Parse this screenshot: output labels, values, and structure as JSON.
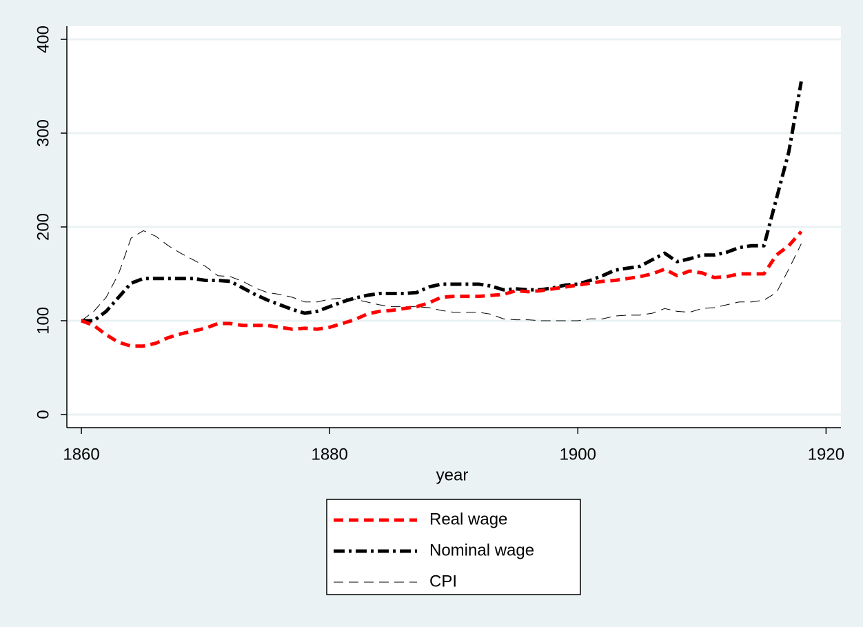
{
  "chart_data": {
    "type": "line",
    "xlabel": "year",
    "x": [
      1860,
      1861,
      1862,
      1863,
      1864,
      1865,
      1866,
      1867,
      1868,
      1869,
      1870,
      1871,
      1872,
      1873,
      1874,
      1875,
      1876,
      1877,
      1878,
      1879,
      1880,
      1881,
      1882,
      1883,
      1884,
      1885,
      1886,
      1887,
      1888,
      1889,
      1890,
      1891,
      1892,
      1893,
      1894,
      1895,
      1896,
      1897,
      1898,
      1899,
      1900,
      1901,
      1902,
      1903,
      1904,
      1905,
      1906,
      1907,
      1908,
      1909,
      1910,
      1911,
      1912,
      1913,
      1914,
      1915,
      1916,
      1917,
      1918
    ],
    "series": [
      {
        "name": "Real wage",
        "color": "#ff0000",
        "width": 5,
        "dash": "14 8",
        "values": [
          100,
          95,
          85,
          77,
          73,
          73,
          76,
          82,
          86,
          89,
          92,
          97,
          97,
          95,
          95,
          95,
          93,
          91,
          92,
          91,
          93,
          97,
          101,
          107,
          110,
          111,
          113,
          115,
          119,
          125,
          126,
          126,
          126,
          127,
          128,
          132,
          131,
          132,
          134,
          136,
          138,
          140,
          142,
          143,
          145,
          147,
          150,
          155,
          148,
          153,
          151,
          146,
          147,
          150,
          150,
          150,
          170,
          180,
          195
        ]
      },
      {
        "name": "Nominal wage",
        "color": "#000000",
        "width": 5,
        "dash": "16 6 4 6",
        "values": [
          100,
          100,
          110,
          125,
          140,
          145,
          145,
          145,
          145,
          145,
          143,
          143,
          142,
          135,
          128,
          122,
          117,
          112,
          108,
          110,
          115,
          120,
          124,
          127,
          129,
          129,
          129,
          130,
          136,
          139,
          139,
          139,
          139,
          137,
          133,
          134,
          133,
          133,
          135,
          138,
          139,
          143,
          148,
          154,
          156,
          158,
          165,
          172,
          163,
          166,
          170,
          170,
          173,
          178,
          180,
          180,
          230,
          280,
          355
        ]
      },
      {
        "name": "CPI",
        "color": "#000000",
        "width": 1,
        "dash": "14 8",
        "values": [
          100,
          110,
          125,
          150,
          188,
          196,
          190,
          180,
          172,
          165,
          158,
          148,
          147,
          142,
          135,
          130,
          128,
          125,
          120,
          120,
          123,
          124,
          123,
          120,
          117,
          115,
          115,
          115,
          114,
          111,
          109,
          109,
          109,
          107,
          102,
          101,
          101,
          100,
          100,
          100,
          100,
          102,
          102,
          105,
          106,
          106,
          108,
          113,
          110,
          109,
          113,
          114,
          117,
          120,
          120,
          122,
          130,
          155,
          182
        ]
      }
    ],
    "xlim": [
      1858.83,
      1921.2
    ],
    "xticks": [
      1860,
      1880,
      1900,
      1920
    ],
    "ylim": [
      -14,
      414
    ],
    "yticks": [
      0,
      100,
      200,
      300,
      400
    ],
    "grid": true
  }
}
